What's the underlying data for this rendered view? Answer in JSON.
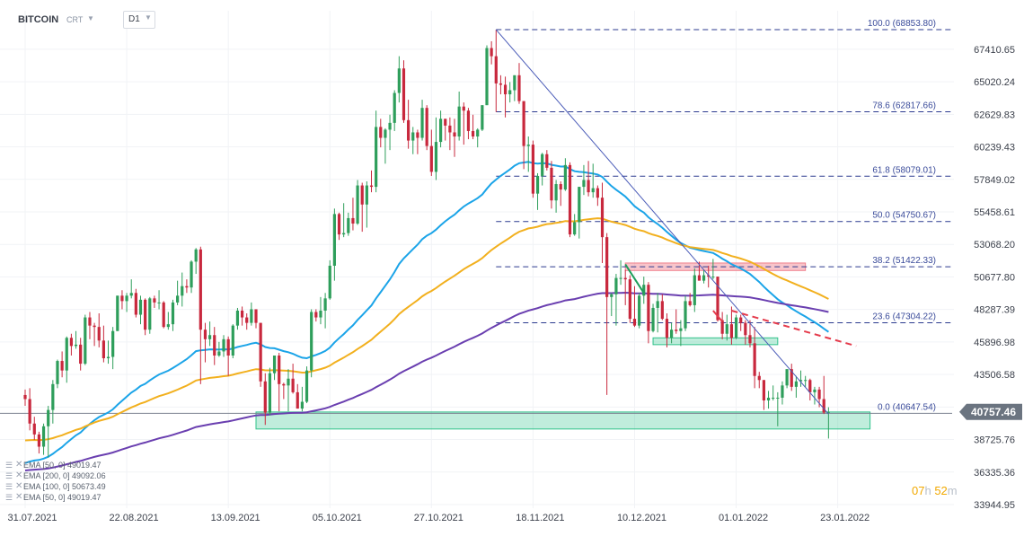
{
  "header": {
    "symbol": "BITCOIN",
    "source": "CRT",
    "timeframe": "D1"
  },
  "timer": {
    "hours": "07",
    "h_unit": "h",
    "minutes": "52",
    "m_unit": "m"
  },
  "indicators": [
    {
      "label": "EMA [50, 0] 49019.47",
      "color": "#1ba4e8"
    },
    {
      "label": "EMA [200, 0] 49092.06",
      "color": "#6a3fb0"
    },
    {
      "label": "EMA [100, 0] 50673.49",
      "color": "#f2b01e"
    },
    {
      "label": "EMA [50, 0] 49019.47",
      "color": "#1ba4e8"
    }
  ],
  "chart_data": {
    "type": "candlestick",
    "y_ticks": [
      "67410.65",
      "65020.24",
      "62629.83",
      "60239.43",
      "57849.02",
      "55458.61",
      "53068.20",
      "50677.80",
      "48287.39",
      "45896.98",
      "43506.58",
      "41116.17",
      "38725.76",
      "36335.36",
      "33944.95"
    ],
    "x_ticks": [
      "31.07.2021",
      "22.08.2021",
      "13.09.2021",
      "05.10.2021",
      "27.10.2021",
      "18.11.2021",
      "10.12.2021",
      "01.01.2022",
      "23.01.2022"
    ],
    "x_tick_dates": [
      "2021-07-31",
      "2021-08-22",
      "2021-09-13",
      "2021-10-05",
      "2021-10-27",
      "2021-11-18",
      "2021-12-10",
      "2022-01-01",
      "2022-01-23"
    ],
    "ylim": [
      33944.95,
      68853.8
    ],
    "current_price": "40757.46",
    "colors": {
      "up": "#2e9e5b",
      "down": "#c8283d",
      "fib": "#2b3a8f",
      "fib_text": "#3a4b9a",
      "ema50": "#1ba4e8",
      "ema100": "#f2b01e",
      "ema200": "#6a3fb0",
      "price_tag": "#6b7480",
      "zone_green": "#2fc28a",
      "zone_red": "#f07f8c",
      "trend": "#4a5bb8",
      "dash_red": "#e53b4c"
    },
    "fibonacci": [
      {
        "label": "100.0 (68853.80)",
        "value": 68853.8
      },
      {
        "label": "78.6 (62817.66)",
        "value": 62817.66
      },
      {
        "label": "61.8 (58079.01)",
        "value": 58079.01
      },
      {
        "label": "50.0 (54750.67)",
        "value": 54750.67
      },
      {
        "label": "38.2 (51422.33)",
        "value": 51422.33
      },
      {
        "label": "23.6 (47304.22)",
        "value": 47304.22
      },
      {
        "label": "0.0 (40647.54)",
        "value": 40647.54
      }
    ],
    "candles": [
      [
        "2021-07-31",
        42000,
        42400,
        41200,
        41700
      ],
      [
        "2021-08-01",
        41700,
        42500,
        39400,
        39900
      ],
      [
        "2021-08-02",
        39900,
        40400,
        38700,
        39100
      ],
      [
        "2021-08-03",
        39100,
        39300,
        37700,
        38200
      ],
      [
        "2021-08-04",
        38200,
        39900,
        37600,
        39700
      ],
      [
        "2021-08-05",
        39700,
        41200,
        37400,
        40900
      ],
      [
        "2021-08-06",
        40900,
        43100,
        39900,
        42800
      ],
      [
        "2021-08-07",
        42800,
        44600,
        42500,
        44500
      ],
      [
        "2021-08-08",
        44500,
        45200,
        43300,
        43800
      ],
      [
        "2021-08-09",
        43800,
        46300,
        42900,
        46200
      ],
      [
        "2021-08-10",
        46200,
        46500,
        44900,
        45600
      ],
      [
        "2021-08-11",
        45600,
        46700,
        45400,
        45700
      ],
      [
        "2021-08-12",
        45700,
        46200,
        43800,
        44300
      ],
      [
        "2021-08-13",
        44300,
        47900,
        44200,
        47700
      ],
      [
        "2021-08-14",
        47700,
        48100,
        46100,
        47100
      ],
      [
        "2021-08-15",
        47100,
        47300,
        45600,
        47000
      ],
      [
        "2021-08-16",
        47000,
        48000,
        45500,
        46000
      ],
      [
        "2021-08-17",
        46000,
        47100,
        44400,
        44700
      ],
      [
        "2021-08-18",
        44700,
        46000,
        44300,
        44800
      ],
      [
        "2021-08-19",
        44800,
        47000,
        43900,
        46700
      ],
      [
        "2021-08-20",
        46700,
        49300,
        46700,
        49300
      ],
      [
        "2021-08-21",
        49300,
        49700,
        48300,
        48900
      ],
      [
        "2021-08-22",
        48900,
        49500,
        48100,
        49300
      ],
      [
        "2021-08-23",
        49300,
        50500,
        49100,
        49500
      ],
      [
        "2021-08-24",
        49500,
        49800,
        47700,
        47900
      ],
      [
        "2021-08-25",
        47900,
        49300,
        47200,
        49000
      ],
      [
        "2021-08-26",
        49000,
        49100,
        46400,
        46800
      ],
      [
        "2021-08-27",
        46800,
        49200,
        46500,
        49100
      ],
      [
        "2021-08-28",
        49100,
        49300,
        48400,
        48800
      ],
      [
        "2021-08-29",
        48800,
        49700,
        48300,
        48800
      ],
      [
        "2021-08-30",
        48800,
        48900,
        46900,
        47000
      ],
      [
        "2021-08-31",
        47000,
        48100,
        46800,
        47200
      ],
      [
        "2021-09-01",
        47200,
        49000,
        46700,
        48800
      ],
      [
        "2021-09-02",
        48800,
        50400,
        48600,
        49300
      ],
      [
        "2021-09-03",
        49300,
        51000,
        48500,
        50000
      ],
      [
        "2021-09-04",
        50000,
        50500,
        49500,
        49900
      ],
      [
        "2021-09-05",
        49900,
        51900,
        49500,
        51800
      ],
      [
        "2021-09-06",
        51800,
        52800,
        50900,
        52700
      ],
      [
        "2021-09-07",
        52700,
        52900,
        42800,
        46800
      ],
      [
        "2021-09-08",
        46800,
        47300,
        44400,
        46100
      ],
      [
        "2021-09-09",
        46100,
        47400,
        45600,
        46400
      ],
      [
        "2021-09-10",
        46400,
        47000,
        44200,
        44900
      ],
      [
        "2021-09-11",
        44900,
        45900,
        44800,
        45200
      ],
      [
        "2021-09-12",
        45200,
        46400,
        44800,
        46100
      ],
      [
        "2021-09-13",
        46100,
        46300,
        43400,
        44900
      ],
      [
        "2021-09-14",
        44900,
        47200,
        44700,
        47100
      ],
      [
        "2021-09-15",
        47100,
        48400,
        46800,
        48200
      ],
      [
        "2021-09-16",
        48200,
        48500,
        47100,
        47700
      ],
      [
        "2021-09-17",
        47700,
        48000,
        46800,
        47300
      ],
      [
        "2021-09-18",
        47300,
        48800,
        47100,
        48300
      ],
      [
        "2021-09-19",
        48300,
        48300,
        46900,
        47300
      ],
      [
        "2021-09-20",
        47300,
        47300,
        42600,
        43000
      ],
      [
        "2021-09-21",
        43000,
        43600,
        39800,
        40700
      ],
      [
        "2021-09-22",
        40700,
        44000,
        40500,
        43600
      ],
      [
        "2021-09-23",
        43600,
        44900,
        43100,
        44900
      ],
      [
        "2021-09-24",
        44900,
        45100,
        40800,
        42800
      ],
      [
        "2021-09-25",
        42800,
        42900,
        41700,
        42700
      ],
      [
        "2021-09-26",
        42700,
        43900,
        40800,
        43200
      ],
      [
        "2021-09-27",
        43200,
        44300,
        42100,
        42200
      ],
      [
        "2021-09-28",
        42200,
        42800,
        41000,
        41000
      ],
      [
        "2021-09-29",
        41000,
        42600,
        40800,
        41500
      ],
      [
        "2021-09-30",
        41500,
        44100,
        41400,
        43800
      ],
      [
        "2021-10-01",
        43800,
        48300,
        43300,
        48100
      ],
      [
        "2021-10-02",
        48100,
        48300,
        47400,
        47700
      ],
      [
        "2021-10-03",
        47700,
        49200,
        47200,
        48200
      ],
      [
        "2021-10-04",
        48200,
        49500,
        46900,
        49100
      ],
      [
        "2021-10-05",
        49100,
        51900,
        49000,
        51500
      ],
      [
        "2021-10-06",
        51500,
        55700,
        50400,
        55300
      ],
      [
        "2021-10-07",
        55300,
        55400,
        53400,
        53800
      ],
      [
        "2021-10-08",
        53800,
        56100,
        53600,
        53900
      ],
      [
        "2021-10-09",
        53900,
        55400,
        53700,
        55000
      ],
      [
        "2021-10-10",
        55000,
        56500,
        54100,
        54600
      ],
      [
        "2021-10-11",
        54600,
        57800,
        54500,
        57400
      ],
      [
        "2021-10-12",
        57400,
        57600,
        54000,
        56000
      ],
      [
        "2021-10-13",
        56000,
        57700,
        54300,
        57400
      ],
      [
        "2021-10-14",
        57400,
        58500,
        56900,
        57300
      ],
      [
        "2021-10-15",
        57300,
        62900,
        56900,
        61700
      ],
      [
        "2021-10-16",
        61700,
        62300,
        60200,
        60900
      ],
      [
        "2021-10-17",
        60900,
        61600,
        59000,
        61500
      ],
      [
        "2021-10-18",
        61500,
        62600,
        60000,
        62000
      ],
      [
        "2021-10-19",
        62000,
        64400,
        61400,
        64200
      ],
      [
        "2021-10-20",
        64200,
        66900,
        63500,
        66000
      ],
      [
        "2021-10-21",
        66000,
        66600,
        62000,
        62200
      ],
      [
        "2021-10-22",
        62200,
        63700,
        60100,
        60700
      ],
      [
        "2021-10-23",
        60700,
        61700,
        59700,
        61300
      ],
      [
        "2021-10-24",
        61300,
        61500,
        59700,
        60900
      ],
      [
        "2021-10-25",
        60900,
        63700,
        60700,
        63100
      ],
      [
        "2021-10-26",
        63100,
        63300,
        60000,
        60300
      ],
      [
        "2021-10-27",
        60300,
        61500,
        58100,
        58400
      ],
      [
        "2021-10-28",
        58400,
        62400,
        57800,
        60600
      ],
      [
        "2021-10-29",
        60600,
        62900,
        60200,
        62300
      ],
      [
        "2021-10-30",
        62300,
        62300,
        60700,
        61800
      ],
      [
        "2021-10-31",
        61800,
        62400,
        60000,
        61300
      ],
      [
        "2021-11-01",
        61300,
        62300,
        59500,
        61000
      ],
      [
        "2021-11-02",
        61000,
        64300,
        60700,
        63200
      ],
      [
        "2021-11-03",
        63200,
        63500,
        60400,
        62900
      ],
      [
        "2021-11-04",
        62900,
        63100,
        60800,
        61400
      ],
      [
        "2021-11-05",
        61400,
        62600,
        60800,
        61000
      ],
      [
        "2021-11-06",
        61000,
        61600,
        60200,
        61500
      ],
      [
        "2021-11-07",
        61500,
        63300,
        61400,
        63300
      ],
      [
        "2021-11-08",
        63300,
        67700,
        63300,
        67500
      ],
      [
        "2021-11-09",
        67500,
        68000,
        66300,
        66900
      ],
      [
        "2021-11-10",
        66900,
        68850,
        62800,
        64900
      ],
      [
        "2021-11-11",
        64900,
        65500,
        64100,
        64800
      ],
      [
        "2021-11-12",
        64800,
        65400,
        62400,
        64100
      ],
      [
        "2021-11-13",
        64100,
        65000,
        63500,
        64400
      ],
      [
        "2021-11-14",
        64400,
        65500,
        63600,
        65500
      ],
      [
        "2021-11-15",
        65500,
        66400,
        63400,
        63600
      ],
      [
        "2021-11-16",
        63600,
        63600,
        58600,
        60300
      ],
      [
        "2021-11-17",
        60300,
        61000,
        58400,
        60400
      ],
      [
        "2021-11-18",
        60400,
        60700,
        56500,
        56800
      ],
      [
        "2021-11-19",
        56800,
        58300,
        55600,
        58100
      ],
      [
        "2021-11-20",
        58100,
        59800,
        57400,
        59700
      ],
      [
        "2021-11-21",
        59700,
        60000,
        58500,
        58700
      ],
      [
        "2021-11-22",
        58700,
        59200,
        55700,
        56300
      ],
      [
        "2021-11-23",
        56300,
        57800,
        55400,
        57500
      ],
      [
        "2021-11-24",
        57500,
        57700,
        55900,
        57100
      ],
      [
        "2021-11-25",
        57100,
        59400,
        57000,
        58900
      ],
      [
        "2021-11-26",
        58900,
        59100,
        53600,
        53800
      ],
      [
        "2021-11-27",
        53800,
        55300,
        53700,
        54700
      ],
      [
        "2021-11-28",
        54700,
        57300,
        53500,
        57300
      ],
      [
        "2021-11-29",
        57300,
        58900,
        56700,
        57800
      ],
      [
        "2021-11-30",
        57800,
        59200,
        56600,
        56900
      ],
      [
        "2021-12-01",
        56900,
        59000,
        56500,
        57200
      ],
      [
        "2021-12-02",
        57200,
        57400,
        55900,
        56500
      ],
      [
        "2021-12-03",
        56500,
        57600,
        51700,
        53600
      ],
      [
        "2021-12-04",
        53600,
        53900,
        42000,
        49200
      ],
      [
        "2021-12-05",
        49200,
        49500,
        47800,
        49400
      ],
      [
        "2021-12-06",
        49400,
        50900,
        47100,
        50600
      ],
      [
        "2021-12-07",
        50600,
        51900,
        50100,
        50600
      ],
      [
        "2021-12-08",
        50600,
        51200,
        48600,
        50500
      ],
      [
        "2021-12-09",
        50500,
        50800,
        47300,
        47600
      ],
      [
        "2021-12-10",
        47600,
        50000,
        47000,
        47100
      ],
      [
        "2021-12-11",
        47100,
        49500,
        46900,
        49300
      ],
      [
        "2021-12-12",
        49300,
        50700,
        48700,
        50100
      ],
      [
        "2021-12-13",
        50100,
        50300,
        45800,
        46700
      ],
      [
        "2021-12-14",
        46700,
        48700,
        46600,
        48400
      ],
      [
        "2021-12-15",
        48400,
        49500,
        46600,
        48900
      ],
      [
        "2021-12-16",
        48900,
        49400,
        47500,
        47600
      ],
      [
        "2021-12-17",
        47600,
        48000,
        45500,
        46200
      ],
      [
        "2021-12-18",
        46200,
        47300,
        45800,
        46800
      ],
      [
        "2021-12-19",
        46800,
        48300,
        46500,
        46700
      ],
      [
        "2021-12-20",
        46700,
        47500,
        45600,
        46900
      ],
      [
        "2021-12-21",
        46900,
        49300,
        46700,
        48900
      ],
      [
        "2021-12-22",
        48900,
        49500,
        48500,
        48600
      ],
      [
        "2021-12-23",
        48600,
        51300,
        48100,
        50800
      ],
      [
        "2021-12-24",
        50800,
        51800,
        50500,
        50400
      ],
      [
        "2021-12-25",
        50400,
        51200,
        50200,
        50800
      ],
      [
        "2021-12-26",
        50800,
        51500,
        49900,
        50700
      ],
      [
        "2021-12-27",
        50700,
        52000,
        50500,
        50700
      ],
      [
        "2021-12-28",
        50700,
        50700,
        47400,
        47500
      ],
      [
        "2021-12-29",
        47500,
        48100,
        46100,
        46500
      ],
      [
        "2021-12-30",
        46500,
        47900,
        46000,
        47200
      ],
      [
        "2021-12-31",
        47200,
        48500,
        45700,
        46200
      ],
      [
        "2022-01-01",
        46200,
        47900,
        46100,
        47700
      ],
      [
        "2022-01-02",
        47700,
        47900,
        46700,
        47300
      ],
      [
        "2022-01-03",
        47300,
        47500,
        45700,
        46400
      ],
      [
        "2022-01-04",
        46400,
        47500,
        45500,
        45800
      ],
      [
        "2022-01-05",
        45800,
        47000,
        42500,
        43400
      ],
      [
        "2022-01-06",
        43400,
        43700,
        42500,
        43100
      ],
      [
        "2022-01-07",
        43100,
        43100,
        40900,
        41600
      ],
      [
        "2022-01-08",
        41600,
        42300,
        41000,
        41800
      ],
      [
        "2022-01-09",
        41800,
        42700,
        41600,
        41800
      ],
      [
        "2022-01-10",
        41800,
        42200,
        39700,
        41800
      ],
      [
        "2022-01-11",
        41800,
        43000,
        41300,
        42700
      ],
      [
        "2022-01-12",
        42700,
        43900,
        42500,
        43900
      ],
      [
        "2022-01-13",
        43900,
        44300,
        42300,
        42600
      ],
      [
        "2022-01-14",
        42600,
        43400,
        41800,
        43000
      ],
      [
        "2022-01-15",
        43000,
        43800,
        42600,
        43100
      ],
      [
        "2022-01-16",
        43100,
        43400,
        42600,
        43100
      ],
      [
        "2022-01-17",
        43100,
        43200,
        41600,
        42200
      ],
      [
        "2022-01-18",
        42200,
        42600,
        41300,
        42400
      ],
      [
        "2022-01-19",
        42400,
        42600,
        41100,
        41700
      ],
      [
        "2022-01-20",
        41700,
        43400,
        40600,
        40700
      ],
      [
        "2022-01-21",
        40700,
        41100,
        38800,
        40757.46
      ]
    ]
  }
}
